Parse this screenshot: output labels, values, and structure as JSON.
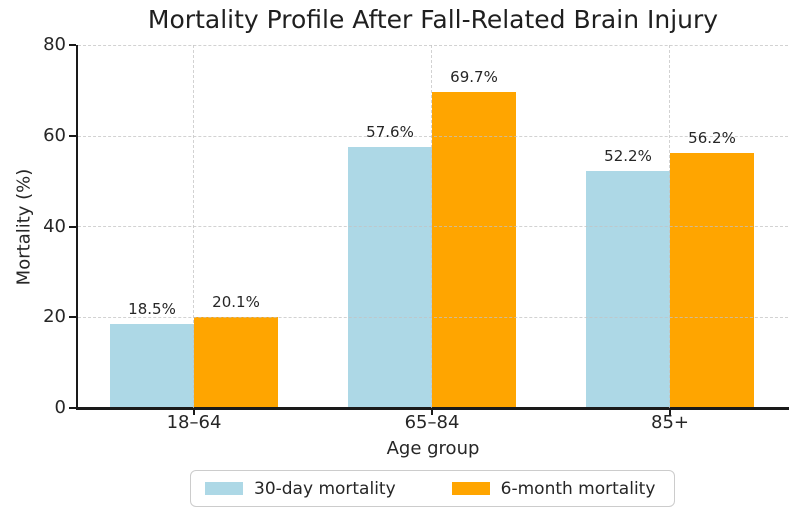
{
  "chart_data": {
    "type": "bar",
    "title": "Mortality Profile After Fall-Related Brain Injury",
    "xlabel": "Age group",
    "ylabel": "Mortality (%)",
    "categories": [
      "18–64",
      "65–84",
      "85+"
    ],
    "series": [
      {
        "name": "30-day mortality",
        "color": "#ADD8E6",
        "values": [
          18.5,
          57.6,
          52.2
        ],
        "labels": [
          "18.5%",
          "57.6%",
          "52.2%"
        ]
      },
      {
        "name": "6-month mortality",
        "color": "#FFA500",
        "values": [
          20.1,
          69.7,
          56.2
        ],
        "labels": [
          "20.1%",
          "69.7%",
          "56.2%"
        ]
      }
    ],
    "ylim": [
      0,
      80
    ],
    "yticks": [
      "0",
      "20",
      "40",
      "60",
      "80"
    ],
    "grid": "dashed",
    "grid_color": "#c9c9c9",
    "legend_position": "bottom",
    "axis_color": "#1a1a1a"
  }
}
